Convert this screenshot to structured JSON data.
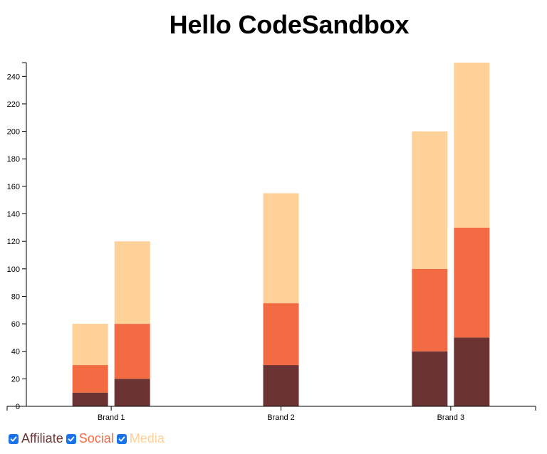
{
  "page": {
    "title": "Hello CodeSandbox"
  },
  "legend": {
    "items": [
      {
        "label": "Affiliate",
        "color": "#6b3333",
        "checked": true
      },
      {
        "label": "Social",
        "color": "#f26b43",
        "checked": true
      },
      {
        "label": "Media",
        "color": "#fed198",
        "checked": true
      }
    ]
  },
  "chart_data": {
    "type": "bar",
    "stacked": true,
    "title": "Hello CodeSandbox",
    "xlabel": "",
    "ylabel": "",
    "ylim": [
      0,
      250
    ],
    "yticks": [
      0,
      20,
      40,
      60,
      80,
      100,
      120,
      140,
      160,
      180,
      200,
      220,
      240
    ],
    "categories": [
      "Brand 1",
      "Brand 2",
      "Brand 3"
    ],
    "stack_order": [
      "Affiliate",
      "Social",
      "Media"
    ],
    "colors": {
      "Affiliate": "#6b3333",
      "Social": "#f26b43",
      "Media": "#fed198"
    },
    "groups": [
      {
        "category": "Brand 1",
        "bars": [
          {
            "Affiliate": 10,
            "Social": 20,
            "Media": 30
          },
          {
            "Affiliate": 20,
            "Social": 40,
            "Media": 60
          }
        ]
      },
      {
        "category": "Brand 2",
        "bars": [
          {
            "Affiliate": 30,
            "Social": 45,
            "Media": 80
          }
        ]
      },
      {
        "category": "Brand 3",
        "bars": [
          {
            "Affiliate": 40,
            "Social": 60,
            "Media": 100
          },
          {
            "Affiliate": 50,
            "Social": 80,
            "Media": 120
          }
        ]
      }
    ],
    "grid": false,
    "legend_position": "bottom-left"
  }
}
